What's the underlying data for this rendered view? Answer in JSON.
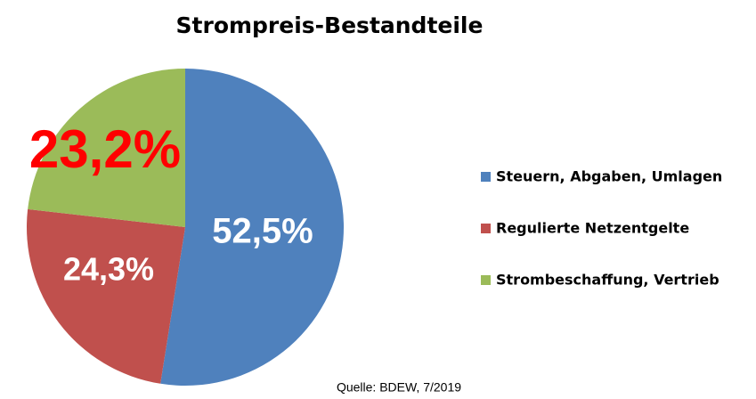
{
  "chart_data": {
    "type": "pie",
    "title": "Strompreis-Bestandteile",
    "categories": [
      "Steuern, Abgaben, Umlagen",
      "Regulierte Netzentgelte",
      "Strombeschaffung, Vertrieb"
    ],
    "values": [
      52.5,
      24.3,
      23.2
    ],
    "value_labels": [
      "52,5%",
      "24,3%",
      "23,2%"
    ],
    "value_label_colors": [
      "#ffffff",
      "#ffffff",
      "#ff0000"
    ],
    "colors": [
      "#4f81bd",
      "#c0504d",
      "#9bbb59"
    ],
    "source": "Quelle: BDEW, 7/2019"
  }
}
